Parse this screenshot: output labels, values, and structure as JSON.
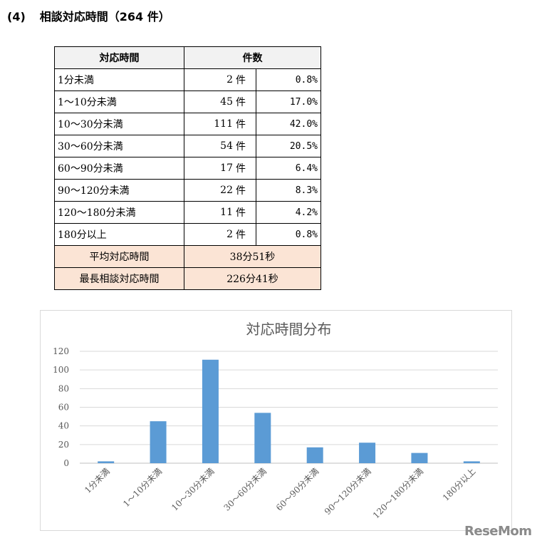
{
  "section": {
    "number": "(4)",
    "title": "相談対応時間（264 件）"
  },
  "table": {
    "headers": [
      "対応時間",
      "件数"
    ],
    "rows": [
      {
        "label": "1分未満",
        "count": "2",
        "unit": "件",
        "pct": "0.8%"
      },
      {
        "label": "1～10分未満",
        "count": "45",
        "unit": "件",
        "pct": "17.0%"
      },
      {
        "label": "10～30分未満",
        "count": "111",
        "unit": "件",
        "pct": "42.0%"
      },
      {
        "label": "30～60分未満",
        "count": "54",
        "unit": "件",
        "pct": "20.5%"
      },
      {
        "label": "60～90分未満",
        "count": "17",
        "unit": "件",
        "pct": "6.4%"
      },
      {
        "label": "90～120分未満",
        "count": "22",
        "unit": "件",
        "pct": "8.3%"
      },
      {
        "label": "120～180分未満",
        "count": "11",
        "unit": "件",
        "pct": "4.2%"
      },
      {
        "label": "180分以上",
        "count": "2",
        "unit": "件",
        "pct": "0.8%"
      }
    ],
    "summary": [
      {
        "label": "平均対応時間",
        "value": "38分51秒"
      },
      {
        "label": "最長相談対応時間",
        "value": "226分41秒"
      }
    ]
  },
  "chart_data": {
    "type": "bar",
    "title": "対応時間分布",
    "categories": [
      "1分未満",
      "1～10分未満",
      "10～30分未満",
      "30～60分未満",
      "60～90分未満",
      "90～120分未満",
      "120～180分未満",
      "180分以上"
    ],
    "values": [
      2,
      45,
      111,
      54,
      17,
      22,
      11,
      2
    ],
    "ylim": [
      0,
      120
    ],
    "yticks": [
      0,
      20,
      40,
      60,
      80,
      100,
      120
    ],
    "grid": true,
    "bar_color": "#5b9bd5"
  },
  "brand": "ReseMom"
}
